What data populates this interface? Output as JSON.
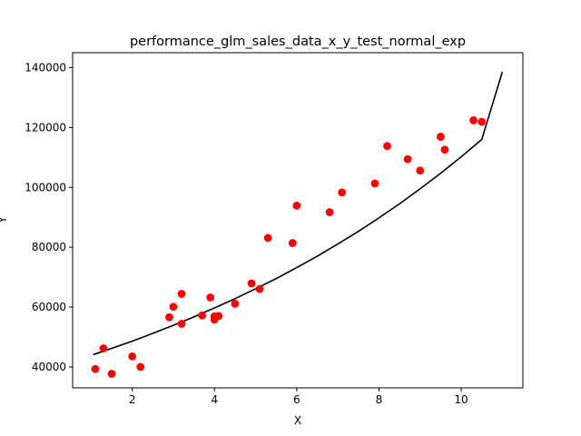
{
  "chart_data": {
    "type": "scatter",
    "title": "performance_glm_sales_data_x_y_test_normal_exp",
    "xlabel": "X",
    "ylabel": "Y",
    "xlim": [
      0.55,
      11.5
    ],
    "ylim": [
      33000,
      145000
    ],
    "xticks": [
      "2",
      "4",
      "6",
      "8",
      "10"
    ],
    "yticks": [
      "40000",
      "60000",
      "80000",
      "100000",
      "120000",
      "140000"
    ],
    "grid": false,
    "colors": {
      "points": "#ff0000",
      "fit": "#000000"
    },
    "series": [
      {
        "kind": "points",
        "x": [
          1.1,
          1.3,
          1.5,
          2.0,
          2.2,
          2.9,
          3.0,
          3.2,
          3.2,
          3.7,
          3.9,
          4.0,
          4.0,
          4.1,
          4.5,
          4.9,
          5.1,
          5.3,
          5.9,
          6.0,
          6.8,
          7.1,
          7.9,
          8.2,
          8.7,
          9.0,
          9.5,
          9.6,
          10.3,
          10.5
        ],
        "y": [
          39300,
          46200,
          37700,
          43500,
          40000,
          56600,
          60100,
          54400,
          64400,
          57200,
          63200,
          55800,
          56900,
          57000,
          61100,
          67900,
          66000,
          83100,
          81400,
          93900,
          91700,
          98300,
          101300,
          113800,
          109400,
          105600,
          116900,
          112600,
          122400,
          121900
        ]
      },
      {
        "kind": "fit",
        "x": [
          1.05,
          1.5,
          2.0,
          2.5,
          3.0,
          3.5,
          4.0,
          4.5,
          5.0,
          5.5,
          6.0,
          6.5,
          7.0,
          7.5,
          8.0,
          8.5,
          9.0,
          9.5,
          10.0,
          10.5,
          11.0
        ],
        "y": [
          44100,
          46200,
          48600,
          51200,
          53900,
          56700,
          59700,
          62800,
          66100,
          69500,
          73200,
          77000,
          81100,
          85300,
          89800,
          94500,
          99500,
          104700,
          110200,
          116000,
          138600
        ]
      }
    ]
  }
}
